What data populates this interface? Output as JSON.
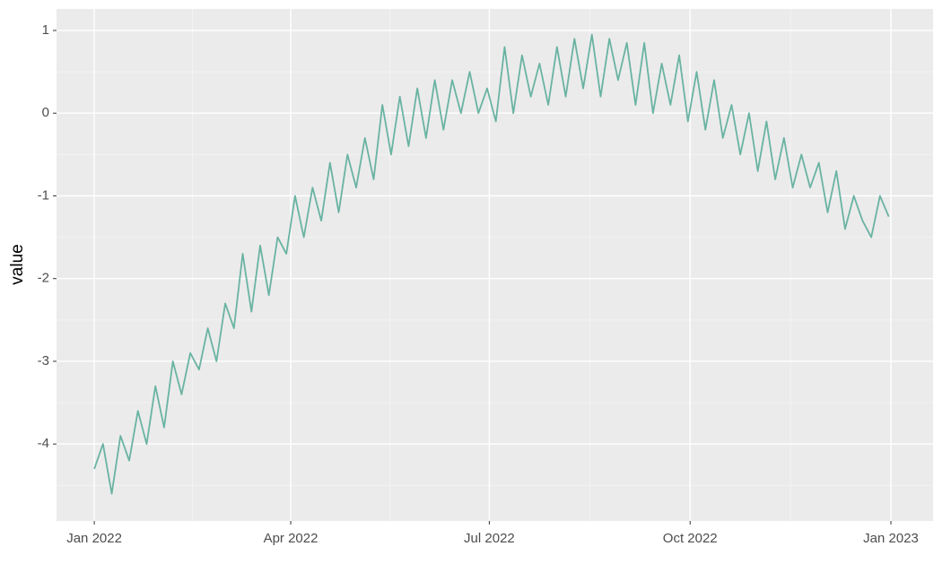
{
  "chart_data": {
    "type": "line",
    "y_label": "value",
    "x": [
      0,
      4,
      8,
      12,
      16,
      20,
      24,
      28,
      32,
      36,
      40,
      44,
      48,
      52,
      56,
      60,
      64,
      68,
      72,
      76,
      80,
      84,
      88,
      92,
      96,
      100,
      104,
      108,
      112,
      116,
      120,
      124,
      128,
      132,
      136,
      140,
      144,
      148,
      152,
      156,
      160,
      164,
      168,
      172,
      176,
      180,
      184,
      188,
      192,
      196,
      200,
      204,
      208,
      212,
      216,
      220,
      224,
      228,
      232,
      236,
      240,
      244,
      248,
      252,
      256,
      260,
      264,
      268,
      272,
      276,
      280,
      284,
      288,
      292,
      296,
      300,
      304,
      308,
      312,
      316,
      320,
      324,
      328,
      332,
      336,
      340,
      344,
      348,
      352,
      356,
      360,
      364
    ],
    "series": [
      {
        "name": "value",
        "color": "#69b3a2",
        "values": [
          -4.3,
          -4.0,
          -4.6,
          -3.9,
          -4.2,
          -3.6,
          -4.0,
          -3.3,
          -3.8,
          -3.0,
          -3.4,
          -2.9,
          -3.1,
          -2.6,
          -3.0,
          -2.3,
          -2.6,
          -1.7,
          -2.4,
          -1.6,
          -2.2,
          -1.5,
          -1.7,
          -1.0,
          -1.5,
          -0.9,
          -1.3,
          -0.6,
          -1.2,
          -0.5,
          -0.9,
          -0.3,
          -0.8,
          0.1,
          -0.5,
          0.2,
          -0.4,
          0.3,
          -0.3,
          0.4,
          -0.2,
          0.4,
          0.0,
          0.5,
          0.0,
          0.3,
          -0.1,
          0.8,
          0.0,
          0.7,
          0.2,
          0.6,
          0.1,
          0.8,
          0.2,
          0.9,
          0.3,
          0.95,
          0.2,
          0.9,
          0.4,
          0.85,
          0.1,
          0.85,
          0.0,
          0.6,
          0.1,
          0.7,
          -0.1,
          0.5,
          -0.2,
          0.4,
          -0.3,
          0.1,
          -0.5,
          0.0,
          -0.7,
          -0.1,
          -0.8,
          -0.3,
          -0.9,
          -0.5,
          -0.9,
          -0.6,
          -1.2,
          -0.7,
          -1.4,
          -1.0,
          -1.3,
          -1.5,
          -1.0,
          -1.25
        ]
      }
    ],
    "xlim": [
      -17.3,
      384.3
    ],
    "xticks": [
      {
        "value": 0,
        "label": "Jan 2022"
      },
      {
        "value": 90,
        "label": "Apr 2022"
      },
      {
        "value": 181,
        "label": "Jul 2022"
      },
      {
        "value": 273,
        "label": "Oct 2022"
      },
      {
        "value": 365,
        "label": "Jan 2023"
      }
    ],
    "ylim": [
      -4.93,
      1.26
    ],
    "yticks": [
      1,
      0,
      -1,
      -2,
      -3,
      -4
    ],
    "grid": true
  }
}
